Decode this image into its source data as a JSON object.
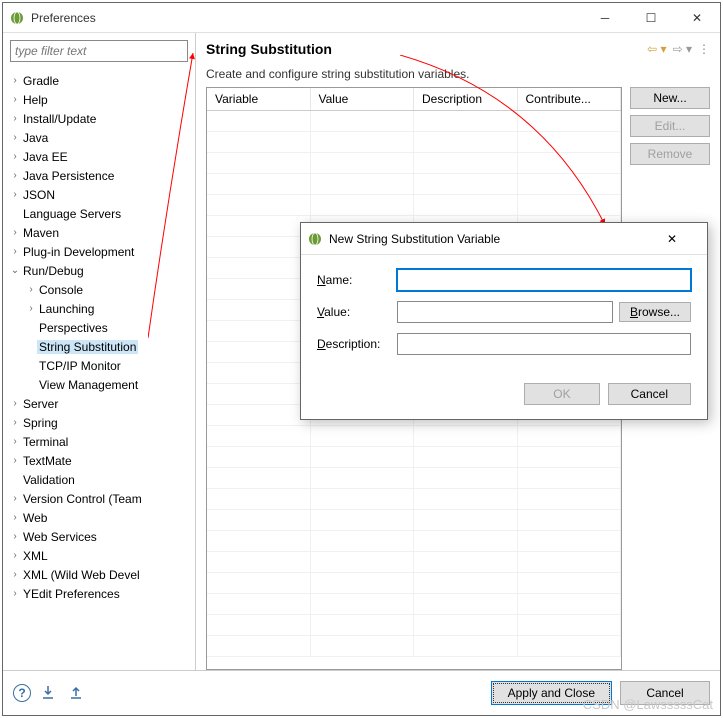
{
  "window": {
    "title": "Preferences"
  },
  "filter": {
    "placeholder": "type filter text"
  },
  "tree": [
    {
      "label": "Gradle",
      "depth": 0,
      "tw": ">"
    },
    {
      "label": "Help",
      "depth": 0,
      "tw": ">"
    },
    {
      "label": "Install/Update",
      "depth": 0,
      "tw": ">"
    },
    {
      "label": "Java",
      "depth": 0,
      "tw": ">"
    },
    {
      "label": "Java EE",
      "depth": 0,
      "tw": ">"
    },
    {
      "label": "Java Persistence",
      "depth": 0,
      "tw": ">"
    },
    {
      "label": "JSON",
      "depth": 0,
      "tw": ">"
    },
    {
      "label": "Language Servers",
      "depth": 0,
      "tw": ""
    },
    {
      "label": "Maven",
      "depth": 0,
      "tw": ">"
    },
    {
      "label": "Plug-in Development",
      "depth": 0,
      "tw": ">"
    },
    {
      "label": "Run/Debug",
      "depth": 0,
      "tw": "v"
    },
    {
      "label": "Console",
      "depth": 1,
      "tw": ">"
    },
    {
      "label": "Launching",
      "depth": 1,
      "tw": ">"
    },
    {
      "label": "Perspectives",
      "depth": 1,
      "tw": ""
    },
    {
      "label": "String Substitution",
      "depth": 1,
      "tw": "",
      "selected": true
    },
    {
      "label": "TCP/IP Monitor",
      "depth": 1,
      "tw": ""
    },
    {
      "label": "View Management",
      "depth": 1,
      "tw": ""
    },
    {
      "label": "Server",
      "depth": 0,
      "tw": ">"
    },
    {
      "label": "Spring",
      "depth": 0,
      "tw": ">"
    },
    {
      "label": "Terminal",
      "depth": 0,
      "tw": ">"
    },
    {
      "label": "TextMate",
      "depth": 0,
      "tw": ">"
    },
    {
      "label": "Validation",
      "depth": 0,
      "tw": ""
    },
    {
      "label": "Version Control (Team",
      "depth": 0,
      "tw": ">"
    },
    {
      "label": "Web",
      "depth": 0,
      "tw": ">"
    },
    {
      "label": "Web Services",
      "depth": 0,
      "tw": ">"
    },
    {
      "label": "XML",
      "depth": 0,
      "tw": ">"
    },
    {
      "label": "XML (Wild Web Devel",
      "depth": 0,
      "tw": ">"
    },
    {
      "label": "YEdit Preferences",
      "depth": 0,
      "tw": ">"
    }
  ],
  "page": {
    "title": "String Substitution",
    "description": "Create and configure string substitution variables.",
    "columns": [
      "Variable",
      "Value",
      "Description",
      "Contribute..."
    ],
    "buttons": {
      "new": "New...",
      "edit": "Edit...",
      "remove": "Remove"
    }
  },
  "footer": {
    "apply": "Apply and Close",
    "cancel": "Cancel"
  },
  "dialog": {
    "title": "New String Substitution Variable",
    "fields": {
      "name": "Name:",
      "value": "Value:",
      "description": "Description:"
    },
    "browse": "Browse...",
    "ok": "OK",
    "cancel": "Cancel",
    "values": {
      "name": "",
      "value": "",
      "description": ""
    }
  },
  "arrows": {
    "color": "#ff0000",
    "stroke_width": 1
  },
  "watermark": "CSDN @LawsssssCat"
}
